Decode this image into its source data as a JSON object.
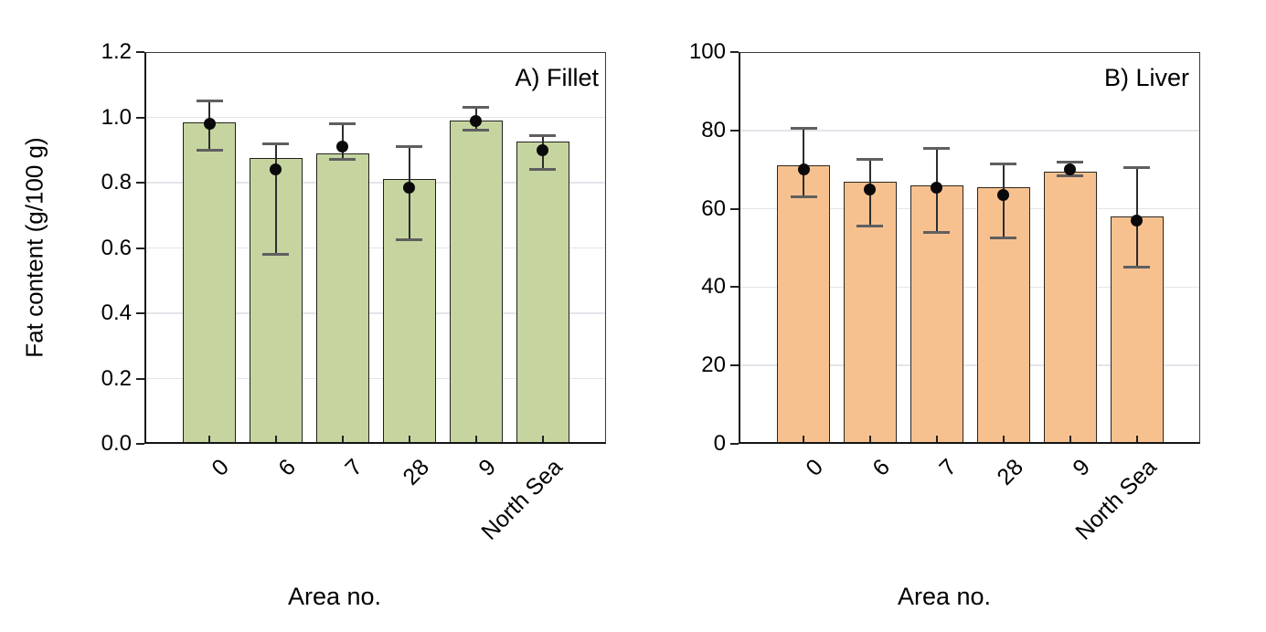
{
  "page": {
    "background_color": "#ffffff",
    "text_color": "#000000",
    "gridline_color": "#e4e4ea",
    "error_bar_color": "#2d2d2d",
    "mean_dot_color": "#0a0a0a"
  },
  "chart_data": [
    {
      "type": "bar",
      "title": "A) Fillet",
      "xlabel": "Area no.",
      "ylabel": "Fat content (g/100 g)",
      "categories": [
        "0",
        "6",
        "7",
        "28",
        "9",
        "North Sea"
      ],
      "values": [
        0.985,
        0.875,
        0.89,
        0.81,
        0.99,
        0.925
      ],
      "mean_dots": [
        0.98,
        0.84,
        0.91,
        0.785,
        0.99,
        0.9
      ],
      "error_low": [
        0.9,
        0.58,
        0.87,
        0.625,
        0.96,
        0.84
      ],
      "error_high": [
        1.05,
        0.92,
        0.98,
        0.91,
        1.03,
        0.945
      ],
      "ylim": [
        0,
        1.2
      ],
      "yticks": [
        "0.0",
        "0.2",
        "0.4",
        "0.6",
        "0.8",
        "1.0",
        "1.2"
      ],
      "grid": true,
      "legend": "none",
      "bar_color": "#c6d5a0",
      "bar_border_color": "#20201c"
    },
    {
      "type": "bar",
      "title": "B) Liver",
      "xlabel": "Area no.",
      "ylabel": "",
      "categories": [
        "0",
        "6",
        "7",
        "28",
        "9",
        "North Sea"
      ],
      "values": [
        71,
        67,
        66,
        65.5,
        69.5,
        58
      ],
      "mean_dots": [
        70,
        65,
        65.5,
        63.5,
        70,
        57
      ],
      "error_low": [
        63,
        55.5,
        54,
        52.5,
        68.5,
        45
      ],
      "error_high": [
        80.5,
        72.5,
        75.5,
        71.5,
        72,
        70.5
      ],
      "ylim": [
        0,
        100
      ],
      "yticks": [
        "0",
        "20",
        "40",
        "60",
        "80",
        "100"
      ],
      "grid": true,
      "legend": "none",
      "bar_color": "#f7c18f",
      "bar_border_color": "#2a2620"
    }
  ]
}
